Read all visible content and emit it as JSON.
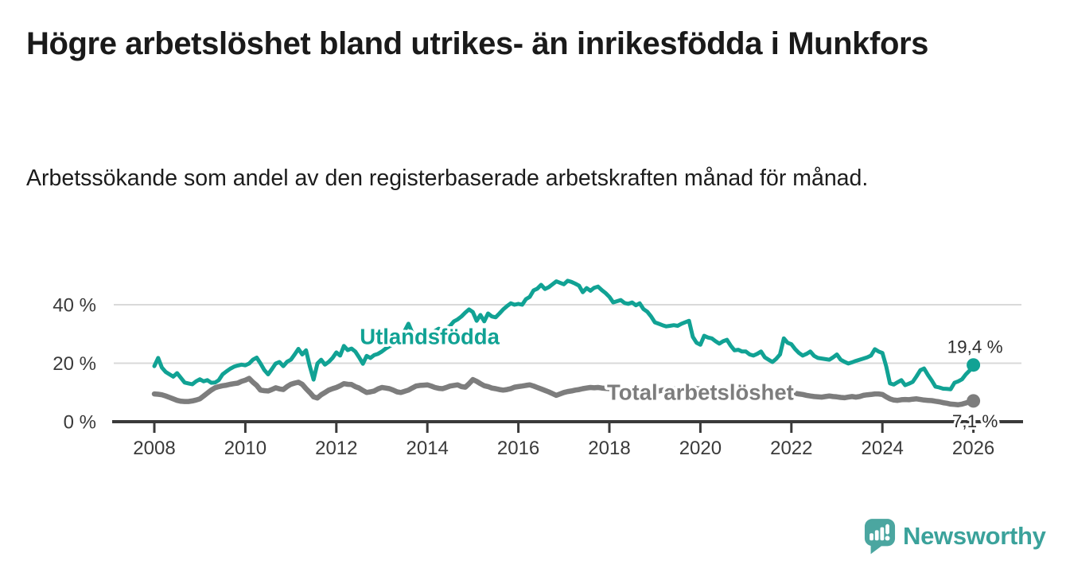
{
  "header": {
    "title": "Högre arbetslöshet bland utrikes- än inrikesfödda i Munkfors",
    "subtitle": "Arbetssökande som andel av den registerbaserade arbetskraften månad för månad."
  },
  "branding": {
    "name": "Newsworthy",
    "icon": "speech-bubble-bar-chart-icon",
    "icon_color": "#4BA6A0",
    "text_color": "#3BA29B"
  },
  "chart_data": {
    "type": "line",
    "unit": "%",
    "x_start_year": 2008,
    "points_per_year": 12,
    "xlim": [
      2008,
      2026.1
    ],
    "ylim": [
      0,
      54
    ],
    "grid": "horizontal",
    "x_ticks": [
      2008,
      2010,
      2012,
      2014,
      2016,
      2018,
      2020,
      2022,
      2024,
      2026
    ],
    "y_ticks": [
      {
        "value": 0,
        "label": "0 %"
      },
      {
        "value": 20,
        "label": "20 %"
      },
      {
        "value": 40,
        "label": "40 %"
      }
    ],
    "series": [
      {
        "id": "utlandsfodda",
        "name": "Utlandsfödda",
        "color": "#11A294",
        "line_width": 5,
        "label_anchor": {
          "year": 2014.05,
          "value": 29.1
        },
        "end_value": 19.4,
        "end_label": "19,4 %",
        "end_label_position": "above",
        "values": [
          19.0,
          21.8,
          18.5,
          17.0,
          16.2,
          15.4,
          16.6,
          15.0,
          13.4,
          13.1,
          12.8,
          13.8,
          14.5,
          13.8,
          14.2,
          13.3,
          13.4,
          14.2,
          16.2,
          17.2,
          18.1,
          18.8,
          19.2,
          19.5,
          19.3,
          19.9,
          21.2,
          21.9,
          19.9,
          17.7,
          16.2,
          18.0,
          19.9,
          20.4,
          19.0,
          20.5,
          21.2,
          23.0,
          24.9,
          23.0,
          24.4,
          19.0,
          14.4,
          19.9,
          21.2,
          19.5,
          20.5,
          21.8,
          23.7,
          22.6,
          25.9,
          24.5,
          25.0,
          24.0,
          22.0,
          19.8,
          22.5,
          21.8,
          22.8,
          23.2,
          24.0,
          25.0,
          25.8,
          26.5,
          27.5,
          28.5,
          31.0,
          33.5,
          30.5,
          29.5,
          30.0,
          30.5,
          29.5,
          30.2,
          31.0,
          31.8,
          31.0,
          32.0,
          32.8,
          34.3,
          35.0,
          36.0,
          37.3,
          38.4,
          37.5,
          34.5,
          36.5,
          34.3,
          37.0,
          36.0,
          35.7,
          37.0,
          38.4,
          39.5,
          40.5,
          40.0,
          40.3,
          40.0,
          41.9,
          42.7,
          44.9,
          45.5,
          46.8,
          45.4,
          46.0,
          47.0,
          48.0,
          47.5,
          47.0,
          48.2,
          47.8,
          47.2,
          46.5,
          44.3,
          45.7,
          44.8,
          45.8,
          46.2,
          45.0,
          44.0,
          42.7,
          40.8,
          41.2,
          41.6,
          40.6,
          40.3,
          40.8,
          39.8,
          40.5,
          38.5,
          37.6,
          36.0,
          34.0,
          33.5,
          33.0,
          32.6,
          32.8,
          33.0,
          32.8,
          33.5,
          34.0,
          34.5,
          29.0,
          27.0,
          26.3,
          29.4,
          28.8,
          28.5,
          27.5,
          26.7,
          27.5,
          28.0,
          26.0,
          24.4,
          24.6,
          24.0,
          24.0,
          23.0,
          22.6,
          23.2,
          24.0,
          22.0,
          21.2,
          20.4,
          21.5,
          23.0,
          28.5,
          27.0,
          26.5,
          24.8,
          23.5,
          22.6,
          23.2,
          24.0,
          22.5,
          21.8,
          21.6,
          21.4,
          21.2,
          22.0,
          23.0,
          21.2,
          20.5,
          19.9,
          20.3,
          20.8,
          21.2,
          21.6,
          22.0,
          22.6,
          24.8,
          24.0,
          23.5,
          18.9,
          13.1,
          12.7,
          13.5,
          14.2,
          12.5,
          13.0,
          13.6,
          15.5,
          17.6,
          18.2,
          16.0,
          14.1,
          12.0,
          11.7,
          11.3,
          11.2,
          11.1,
          13.3,
          13.8,
          14.5,
          16.2,
          17.5,
          19.4
        ]
      },
      {
        "id": "total",
        "name": "Total arbetslöshet",
        "color": "#7D7D7D",
        "line_width": 6.5,
        "label_anchor": {
          "year": 2020.0,
          "value": 10.1
        },
        "end_value": 7.1,
        "end_label": "7,1 %",
        "end_label_position": "below",
        "values": [
          9.5,
          9.4,
          9.2,
          8.8,
          8.3,
          7.8,
          7.3,
          7.0,
          6.9,
          6.9,
          7.1,
          7.4,
          7.8,
          8.8,
          9.8,
          10.8,
          11.6,
          12.0,
          12.3,
          12.5,
          12.8,
          13.0,
          13.2,
          13.8,
          14.2,
          14.8,
          13.5,
          12.4,
          10.8,
          10.6,
          10.5,
          11.0,
          11.6,
          11.2,
          11.0,
          12.0,
          12.8,
          13.2,
          13.5,
          12.8,
          11.3,
          10.0,
          8.5,
          8.1,
          9.2,
          10.0,
          10.8,
          11.3,
          11.7,
          12.3,
          13.0,
          12.8,
          12.7,
          12.0,
          11.5,
          10.7,
          10.0,
          10.2,
          10.5,
          11.2,
          11.7,
          11.5,
          11.3,
          10.8,
          10.2,
          10.0,
          10.4,
          10.8,
          11.5,
          12.2,
          12.4,
          12.5,
          12.6,
          12.2,
          11.7,
          11.4,
          11.3,
          11.7,
          12.2,
          12.4,
          12.6,
          12.0,
          11.8,
          13.0,
          14.4,
          13.8,
          13.0,
          12.3,
          12.0,
          11.5,
          11.3,
          11.0,
          10.8,
          11.0,
          11.3,
          11.8,
          12.0,
          12.2,
          12.4,
          12.6,
          12.2,
          11.7,
          11.2,
          10.7,
          10.2,
          9.6,
          9.0,
          9.5,
          10.0,
          10.3,
          10.5,
          10.8,
          11.0,
          11.3,
          11.5,
          11.7,
          11.6,
          11.7,
          11.5,
          11.4,
          11.3,
          11.0,
          10.8,
          10.3,
          9.6,
          9.0,
          8.8,
          8.6,
          8.9,
          9.3,
          9.7,
          10.0,
          10.2,
          10.5,
          10.8,
          11.0,
          11.3,
          11.2,
          11.0,
          10.9,
          10.8,
          11.0,
          11.2,
          11.3,
          11.2,
          11.0,
          10.9,
          11.0,
          10.8,
          10.7,
          10.9,
          11.0,
          10.8,
          10.6,
          10.5,
          10.4,
          10.5,
          10.3,
          10.0,
          10.1,
          10.3,
          10.2,
          10.0,
          9.8,
          9.7,
          9.8,
          10.0,
          10.1,
          10.0,
          9.7,
          9.5,
          9.3,
          9.0,
          8.8,
          8.6,
          8.5,
          8.4,
          8.6,
          8.8,
          8.6,
          8.5,
          8.3,
          8.2,
          8.4,
          8.6,
          8.4,
          8.6,
          9.0,
          9.2,
          9.3,
          9.5,
          9.5,
          9.3,
          8.5,
          7.8,
          7.4,
          7.3,
          7.5,
          7.6,
          7.5,
          7.7,
          7.8,
          7.6,
          7.4,
          7.3,
          7.2,
          7.0,
          6.8,
          6.5,
          6.3,
          6.0,
          5.9,
          5.8,
          6.0,
          6.4,
          6.8,
          7.1
        ]
      }
    ]
  }
}
